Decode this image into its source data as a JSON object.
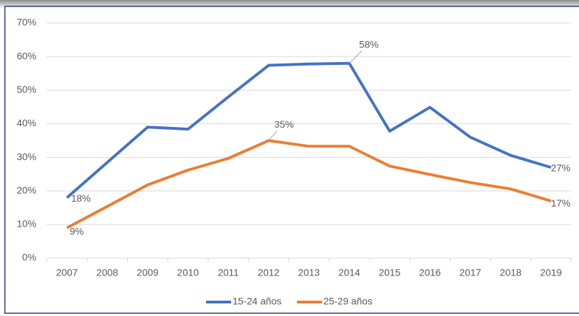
{
  "chart_data": {
    "type": "line",
    "categories": [
      "2007",
      "2008",
      "2009",
      "2010",
      "2011",
      "2012",
      "2013",
      "2014",
      "2015",
      "2016",
      "2017",
      "2018",
      "2019"
    ],
    "series": [
      {
        "name": "15-24 años",
        "color": "#4472c4",
        "values": [
          18,
          28.5,
          39,
          38.4,
          48,
          57.4,
          57.8,
          58,
          37.8,
          44.9,
          36,
          30.6,
          27
        ],
        "value_labels": [
          "18%",
          null,
          null,
          null,
          null,
          null,
          null,
          "58%",
          null,
          null,
          null,
          null,
          "27%"
        ]
      },
      {
        "name": "25-29 años",
        "color": "#ed7d31",
        "values": [
          9,
          15.4,
          21.8,
          26.2,
          29.7,
          35,
          33.3,
          33.3,
          27.4,
          24.9,
          22.5,
          20.6,
          17
        ],
        "value_labels": [
          "9%",
          null,
          null,
          null,
          null,
          "35%",
          null,
          null,
          null,
          null,
          null,
          null,
          "17%"
        ]
      }
    ],
    "ylim": [
      0,
      70
    ],
    "yticks": [
      {
        "value": 0,
        "label": "0%"
      },
      {
        "value": 10,
        "label": "10%"
      },
      {
        "value": 20,
        "label": "20%"
      },
      {
        "value": 30,
        "label": "30%"
      },
      {
        "value": 40,
        "label": "40%"
      },
      {
        "value": 50,
        "label": "50%"
      },
      {
        "value": 60,
        "label": "60%"
      },
      {
        "value": 70,
        "label": "70%"
      }
    ],
    "grid": true,
    "legend": "bottom"
  }
}
